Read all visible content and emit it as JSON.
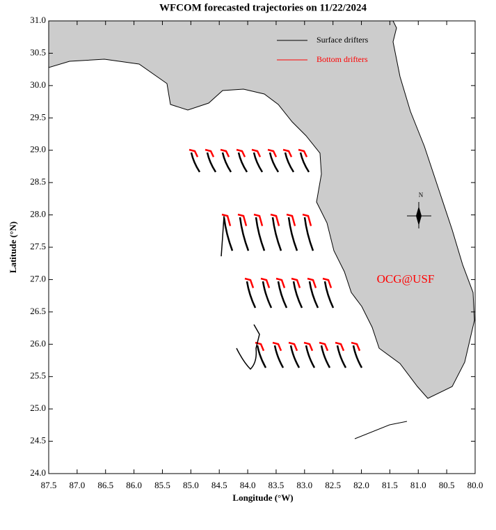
{
  "chart_data": {
    "type": "map",
    "title": "WFCOM forecasted trajectories on 11/22/2024",
    "xlabel": "Longitude (°W)",
    "ylabel": "Latitude (°N)",
    "xlim": [
      87.5,
      80.0
    ],
    "xticks": [
      87.5,
      {
        "value": 87,
        "label": "87.0"
      },
      86.5,
      {
        "value": 86,
        "label": "86.0"
      },
      85.5,
      {
        "value": 85,
        "label": "85.0"
      },
      84.5,
      {
        "value": 84,
        "label": "84.0"
      },
      83.5,
      {
        "value": 83,
        "label": "83.0"
      },
      82.5,
      {
        "value": 82,
        "label": "82.0"
      },
      81.5,
      {
        "value": 81,
        "label": "81.0"
      },
      80.5,
      {
        "value": 80,
        "label": "80.0"
      }
    ],
    "ylim": [
      24.0,
      31.0
    ],
    "yticks": [
      {
        "value": 24,
        "label": "24.0"
      },
      24.5,
      {
        "value": 25,
        "label": "25.0"
      },
      25.5,
      {
        "value": 26,
        "label": "26.0"
      },
      26.5,
      {
        "value": 27,
        "label": "27.0"
      },
      27.5,
      {
        "value": 28,
        "label": "28.0"
      },
      28.5,
      {
        "value": 29,
        "label": "29.0"
      },
      29.5,
      {
        "value": 30,
        "label": "30.0"
      },
      30.5,
      {
        "value": 31,
        "label": "31.0"
      }
    ],
    "legend": [
      {
        "name": "Surface drifters",
        "color": "#000000"
      },
      {
        "name": "Bottom drifters",
        "color": "#ff0000"
      }
    ],
    "annotations": [
      "OCG@USF",
      "N"
    ]
  }
}
